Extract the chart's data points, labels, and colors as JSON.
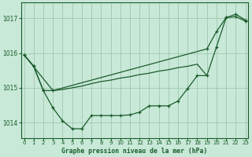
{
  "title": "Graphe pression niveau de la mer (hPa)",
  "background_color": "#c8e8d8",
  "grid_color": "#a0c8b0",
  "line_color": "#1a5c2a",
  "x_ticks": [
    0,
    1,
    2,
    3,
    4,
    5,
    6,
    7,
    8,
    9,
    10,
    11,
    12,
    13,
    14,
    15,
    16,
    17,
    18,
    19,
    20,
    21,
    22,
    23
  ],
  "y_ticks": [
    1014,
    1015,
    1016,
    1017
  ],
  "ylim": [
    1013.55,
    1017.45
  ],
  "xlim": [
    -0.3,
    23.3
  ],
  "series1_x": [
    0,
    1,
    2,
    3,
    4,
    5,
    6,
    7,
    8,
    9,
    10,
    11,
    12,
    13,
    14,
    15,
    16,
    17,
    18,
    19,
    20,
    21,
    22,
    23
  ],
  "series1_y": [
    1015.95,
    1015.62,
    1014.92,
    1014.42,
    1014.05,
    1013.82,
    1013.82,
    1014.2,
    1014.2,
    1014.2,
    1014.2,
    1014.22,
    1014.3,
    1014.48,
    1014.48,
    1014.48,
    1014.62,
    1014.98,
    1015.35,
    1015.35,
    1016.18,
    1017.02,
    1017.05,
    1016.92
  ],
  "series2_x": [
    0,
    1,
    2,
    3,
    19,
    20,
    21,
    22,
    23
  ],
  "series2_y": [
    1015.95,
    1015.62,
    1014.92,
    1014.92,
    1016.12,
    1016.62,
    1017.02,
    1017.12,
    1016.95
  ],
  "series3_x": [
    0,
    3,
    4,
    5,
    6,
    7,
    8,
    9,
    10,
    11,
    12,
    13,
    14,
    15,
    16,
    17,
    18,
    19
  ],
  "series3_y": [
    1015.95,
    1014.92,
    1014.95,
    1015.0,
    1015.05,
    1015.12,
    1015.18,
    1015.22,
    1015.28,
    1015.32,
    1015.38,
    1015.42,
    1015.48,
    1015.52,
    1015.58,
    1015.62,
    1015.68,
    1015.35
  ]
}
